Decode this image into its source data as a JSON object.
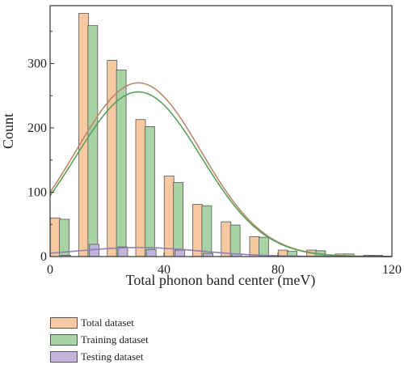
{
  "chart_data": {
    "type": "bar",
    "xlabel": "Total phonon band center (meV)",
    "ylabel": "Count",
    "xlim": [
      0,
      120
    ],
    "ylim": [
      0,
      390
    ],
    "xticks": [
      0,
      40,
      80,
      120
    ],
    "yticks": [
      0,
      100,
      200,
      300
    ],
    "grid": false,
    "legend_position": "below",
    "bin_width": 10,
    "bin_centers": [
      5,
      15,
      25,
      35,
      45,
      55,
      65,
      75,
      85,
      95,
      105,
      115
    ],
    "series": [
      {
        "name": "Total dataset",
        "color": "#f8c9a0",
        "edge_color": "#555555",
        "curve_color": "#b8896a",
        "values": [
          60,
          378,
          305,
          213,
          125,
          81,
          54,
          31,
          10,
          10,
          4,
          2
        ],
        "fit_curve": {
          "peak_x": 31,
          "peak_y": 270,
          "sigma": 22
        }
      },
      {
        "name": "Training dataset",
        "color": "#a8d3a4",
        "edge_color": "#555555",
        "curve_color": "#5aa05a",
        "values": [
          58,
          359,
          290,
          202,
          115,
          79,
          49,
          30,
          8,
          9,
          4,
          2
        ],
        "fit_curve": {
          "peak_x": 31,
          "peak_y": 256,
          "sigma": 22
        }
      },
      {
        "name": "Testing dataset",
        "color": "#c3b4db",
        "edge_color": "#555555",
        "curve_color": "#8f80b5",
        "values": [
          2,
          19,
          15,
          11,
          10,
          5,
          4,
          2,
          1,
          1,
          0,
          0
        ],
        "fit_curve": {
          "peak_x": 31,
          "peak_y": 14,
          "sigma": 22
        }
      }
    ]
  }
}
